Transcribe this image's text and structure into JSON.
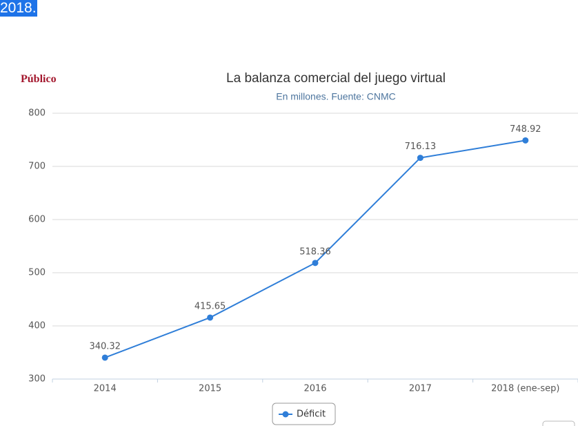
{
  "page_text": "2018.",
  "brand": "Público",
  "chart_data": {
    "type": "line",
    "title": "La balanza comercial del juego virtual",
    "subtitle": "En millones. Fuente: CNMC",
    "categories": [
      "2014",
      "2015",
      "2016",
      "2017",
      "2018 (ene-sep)"
    ],
    "series": [
      {
        "name": "Déficit",
        "color": "#2f7ed8",
        "values": [
          340.32,
          415.65,
          518.36,
          716.13,
          748.92
        ]
      }
    ],
    "ylim": [
      300,
      800
    ],
    "yticks": [
      300,
      400,
      500,
      600,
      700,
      800
    ],
    "grid": true,
    "legend": "bottom"
  }
}
